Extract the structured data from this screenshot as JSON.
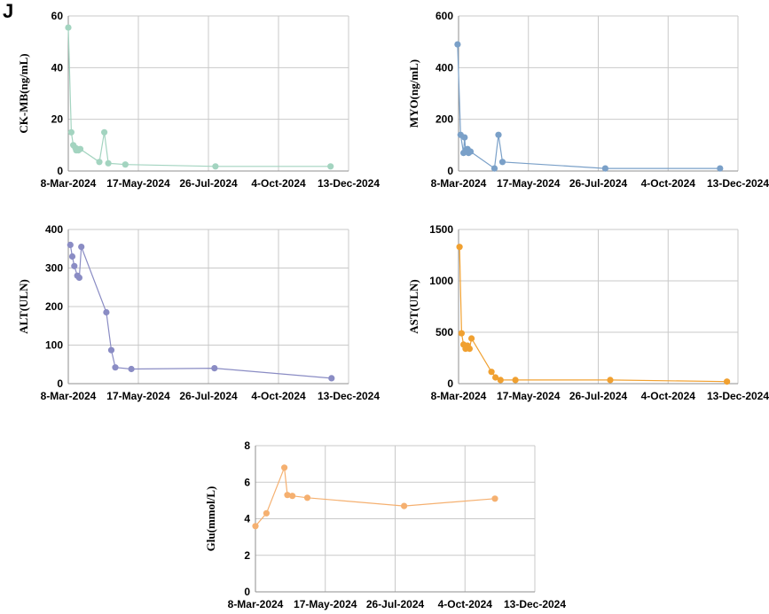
{
  "panel_label": "J",
  "chart_data": [
    {
      "type": "line",
      "ylabel": "CK-MB(ng/mL)",
      "color": "#a3d4c0",
      "x_ticks": [
        "8-Mar-2024",
        "17-May-2024",
        "26-Jul-2024",
        "4-Oct-2024",
        "13-Dec-2024"
      ],
      "y_ticks": [
        "0",
        "20",
        "40",
        "60"
      ],
      "ylim": [
        0,
        60
      ],
      "x": [
        "2024-03-08",
        "2024-03-11",
        "2024-03-13",
        "2024-03-15",
        "2024-03-16",
        "2024-03-17",
        "2024-03-18",
        "2024-03-20",
        "2024-04-08",
        "2024-04-13",
        "2024-04-17",
        "2024-05-04",
        "2024-08-02",
        "2024-11-25"
      ],
      "values": [
        55.5,
        15,
        10,
        9,
        8,
        8.5,
        8,
        8.5,
        3.5,
        15,
        3,
        2.5,
        1.8,
        1.8
      ]
    },
    {
      "type": "line",
      "ylabel": "MYO(ng/mL)",
      "color": "#7aa0c8",
      "x_ticks": [
        "8-Mar-2024",
        "17-May-2024",
        "26-Jul-2024",
        "4-Oct-2024",
        "13-Dec-2024"
      ],
      "y_ticks": [
        "0",
        "200",
        "400",
        "600"
      ],
      "ylim": [
        0,
        600
      ],
      "x": [
        "2024-03-07",
        "2024-03-10",
        "2024-03-13",
        "2024-03-14",
        "2024-03-15",
        "2024-03-16",
        "2024-03-17",
        "2024-03-18",
        "2024-03-20",
        "2024-04-13",
        "2024-04-17",
        "2024-04-21",
        "2024-08-02",
        "2024-11-25"
      ],
      "values": [
        490,
        140,
        70,
        130,
        80,
        75,
        85,
        70,
        75,
        10,
        140,
        35,
        10,
        10
      ]
    },
    {
      "type": "line",
      "ylabel": "ALT(ULN)",
      "color": "#8a8cc4",
      "x_ticks": [
        "8-Mar-2024",
        "17-May-2024",
        "26-Jul-2024",
        "4-Oct-2024",
        "13-Dec-2024"
      ],
      "y_ticks": [
        "0",
        "100",
        "200",
        "300",
        "400"
      ],
      "ylim": [
        0,
        400
      ],
      "x": [
        "2024-03-10",
        "2024-03-12",
        "2024-03-14",
        "2024-03-17",
        "2024-03-19",
        "2024-03-21",
        "2024-04-15",
        "2024-04-20",
        "2024-04-24",
        "2024-05-10",
        "2024-08-01",
        "2024-11-26"
      ],
      "values": [
        360,
        330,
        305,
        280,
        275,
        355,
        185,
        87,
        42,
        38,
        40,
        14
      ]
    },
    {
      "type": "line",
      "ylabel": "AST(ULN)",
      "color": "#f0a030",
      "x_ticks": [
        "8-Mar-2024",
        "17-May-2024",
        "26-Jul-2024",
        "4-Oct-2024",
        "13-Dec-2024"
      ],
      "y_ticks": [
        "0",
        "500",
        "1000",
        "1500"
      ],
      "ylim": [
        0,
        1500
      ],
      "x": [
        "2024-03-09",
        "2024-03-11",
        "2024-03-13",
        "2024-03-15",
        "2024-03-17",
        "2024-03-19",
        "2024-03-21",
        "2024-04-10",
        "2024-04-14",
        "2024-04-19",
        "2024-05-04",
        "2024-08-07",
        "2024-12-02"
      ],
      "values": [
        1330,
        490,
        380,
        340,
        370,
        340,
        440,
        115,
        60,
        35,
        35,
        35,
        20
      ]
    },
    {
      "type": "line",
      "ylabel": "Glu(mmol/L)",
      "color": "#f5b070",
      "x_ticks": [
        "8-Mar-2024",
        "17-May-2024",
        "26-Jul-2024",
        "4-Oct-2024",
        "13-Dec-2024"
      ],
      "y_ticks": [
        "0",
        "2",
        "4",
        "6",
        "8"
      ],
      "ylim": [
        0,
        8
      ],
      "x": [
        "2024-03-08",
        "2024-03-19",
        "2024-04-06",
        "2024-04-09",
        "2024-04-14",
        "2024-04-29",
        "2024-08-04",
        "2024-11-03"
      ],
      "values": [
        3.6,
        4.3,
        6.8,
        5.3,
        5.25,
        5.15,
        4.7,
        5.1
      ]
    }
  ]
}
